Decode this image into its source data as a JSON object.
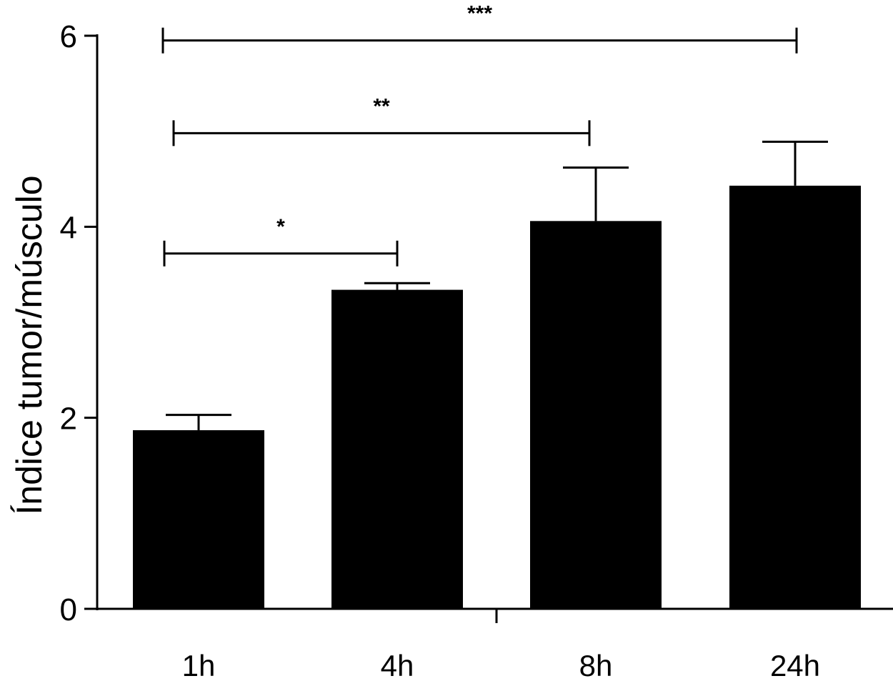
{
  "chart_data": {
    "type": "bar",
    "title": "",
    "xlabel": "",
    "ylabel": "Índice tumor/músculo",
    "ylim": [
      0,
      6
    ],
    "yticks": [
      0,
      2,
      4,
      6
    ],
    "categories": [
      "1h",
      "4h",
      "8h",
      "24h"
    ],
    "values": [
      1.87,
      3.34,
      4.06,
      4.43
    ],
    "errors": [
      0.16,
      0.07,
      0.56,
      0.46
    ],
    "bar_color": "#000000",
    "grid": false,
    "significance": [
      {
        "from": 0,
        "to": 1,
        "y": 3.72,
        "label": "*"
      },
      {
        "from": 0,
        "to": 2,
        "y": 4.98,
        "label": "**"
      },
      {
        "from": 0,
        "to": 3,
        "y": 5.95,
        "label": "***"
      }
    ]
  }
}
